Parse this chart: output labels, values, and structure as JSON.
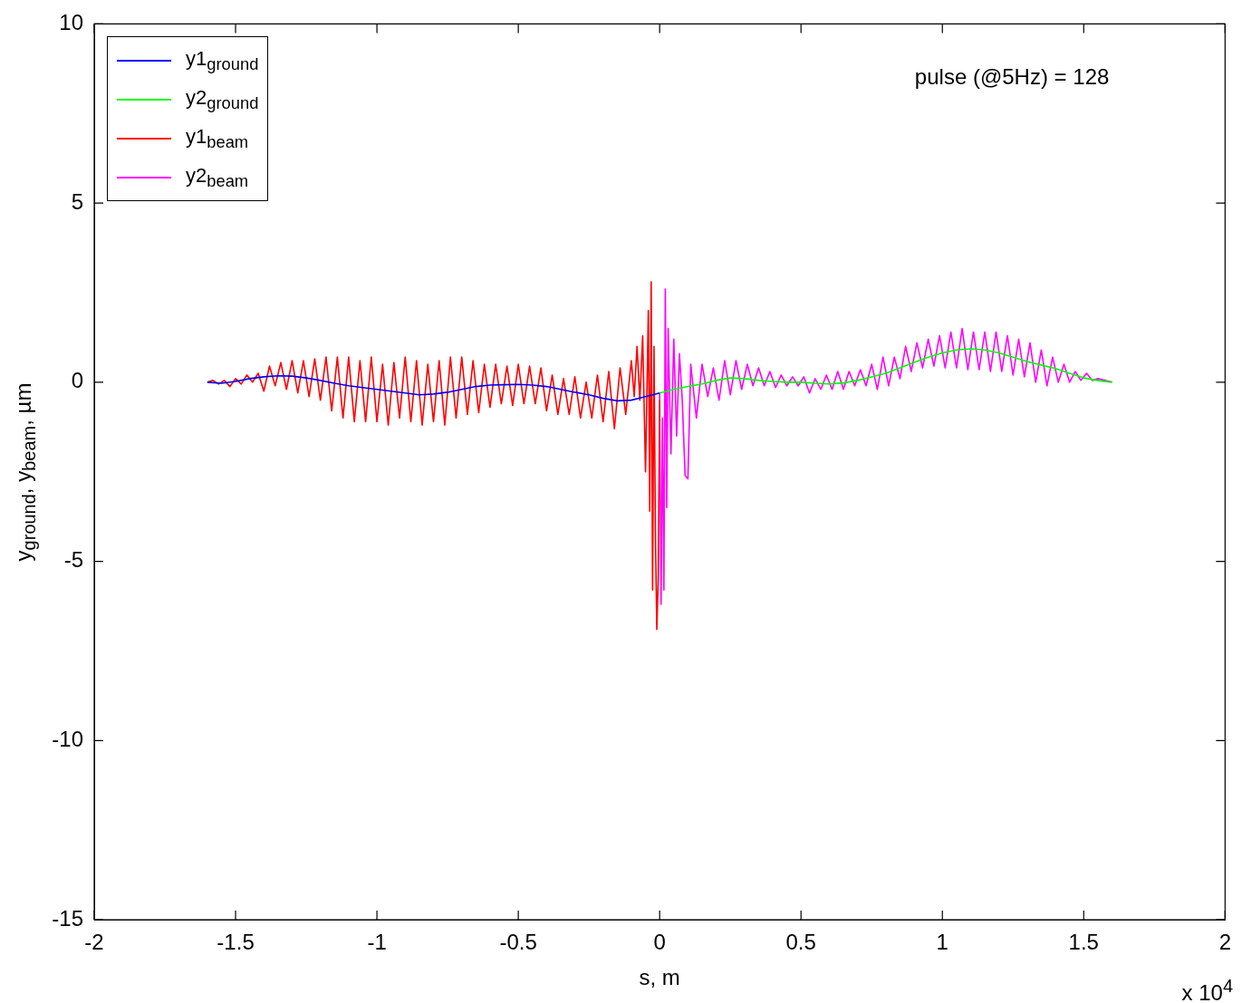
{
  "chart_data": {
    "type": "line",
    "xlabel": "s, m",
    "ylabel": "y$_{ground}$, y$_{beam}$, µm",
    "xlim": [
      -2,
      2
    ],
    "xticks": [
      -2,
      -1.5,
      -1,
      -0.5,
      0,
      0.5,
      1,
      1.5,
      2
    ],
    "ylim": [
      -15,
      10
    ],
    "yticks": [
      -15,
      -10,
      -5,
      0,
      5,
      10
    ],
    "grid": false,
    "legend": "top left",
    "marker": "none",
    "line_style": "solid",
    "annotations": [
      "pulse (@5Hz) = 128",
      "x 10$^{4}$"
    ],
    "series": [
      {
        "name": "y1$_{ground}$",
        "color": "#0000ff",
        "x": [
          -1.6,
          -1.55,
          -1.5,
          -1.45,
          -1.4,
          -1.35,
          -1.3,
          -1.25,
          -1.2,
          -1.15,
          -1.1,
          -1.05,
          -1.0,
          -0.95,
          -0.9,
          -0.85,
          -0.8,
          -0.75,
          -0.7,
          -0.65,
          -0.6,
          -0.55,
          -0.5,
          -0.45,
          -0.4,
          -0.35,
          -0.3,
          -0.25,
          -0.2,
          -0.15,
          -0.1,
          -0.05,
          0
        ],
        "values": [
          0,
          -0.03,
          0.02,
          0.1,
          0.15,
          0.18,
          0.17,
          0.12,
          0.05,
          -0.03,
          -0.1,
          -0.15,
          -0.2,
          -0.25,
          -0.3,
          -0.35,
          -0.33,
          -0.28,
          -0.2,
          -0.12,
          -0.08,
          -0.07,
          -0.06,
          -0.08,
          -0.12,
          -0.2,
          -0.28,
          -0.35,
          -0.45,
          -0.52,
          -0.5,
          -0.4,
          -0.3
        ]
      },
      {
        "name": "y2$_{ground}$",
        "color": "#00ff00",
        "x": [
          0,
          0.05,
          0.1,
          0.15,
          0.2,
          0.25,
          0.3,
          0.35,
          0.4,
          0.45,
          0.5,
          0.55,
          0.6,
          0.65,
          0.7,
          0.75,
          0.8,
          0.85,
          0.9,
          0.95,
          1.0,
          1.05,
          1.1,
          1.15,
          1.2,
          1.25,
          1.3,
          1.35,
          1.4,
          1.45,
          1.5,
          1.55,
          1.6
        ],
        "values": [
          -0.3,
          -0.2,
          -0.12,
          -0.05,
          0.05,
          0.12,
          0.1,
          0.05,
          0.02,
          0,
          0,
          -0.03,
          -0.05,
          -0.02,
          0.05,
          0.15,
          0.25,
          0.4,
          0.55,
          0.7,
          0.82,
          0.9,
          0.93,
          0.9,
          0.82,
          0.7,
          0.58,
          0.48,
          0.38,
          0.25,
          0.12,
          0.05,
          0
        ]
      },
      {
        "name": "y1$_{beam}$",
        "color": "#ff0000",
        "x": [
          -1.6,
          -1.58,
          -1.56,
          -1.54,
          -1.52,
          -1.5,
          -1.48,
          -1.46,
          -1.44,
          -1.42,
          -1.4,
          -1.38,
          -1.36,
          -1.34,
          -1.32,
          -1.3,
          -1.28,
          -1.26,
          -1.24,
          -1.22,
          -1.2,
          -1.18,
          -1.16,
          -1.14,
          -1.12,
          -1.1,
          -1.08,
          -1.06,
          -1.04,
          -1.02,
          -1.0,
          -0.98,
          -0.96,
          -0.94,
          -0.92,
          -0.9,
          -0.88,
          -0.86,
          -0.84,
          -0.82,
          -0.8,
          -0.78,
          -0.76,
          -0.74,
          -0.72,
          -0.7,
          -0.68,
          -0.66,
          -0.64,
          -0.62,
          -0.6,
          -0.58,
          -0.56,
          -0.54,
          -0.52,
          -0.5,
          -0.48,
          -0.46,
          -0.44,
          -0.42,
          -0.4,
          -0.38,
          -0.36,
          -0.34,
          -0.32,
          -0.3,
          -0.28,
          -0.26,
          -0.24,
          -0.22,
          -0.2,
          -0.18,
          -0.16,
          -0.14,
          -0.12,
          -0.1,
          -0.09,
          -0.08,
          -0.07,
          -0.06,
          -0.05,
          -0.04,
          -0.035,
          -0.03,
          -0.025,
          -0.02,
          -0.015,
          -0.01,
          -0.005,
          0
        ],
        "values": [
          0,
          0.05,
          -0.05,
          0.05,
          -0.12,
          0.1,
          -0.05,
          0.2,
          0,
          0.25,
          -0.25,
          0.45,
          -0.1,
          0.55,
          -0.2,
          0.6,
          -0.3,
          0.6,
          -0.4,
          0.65,
          -0.5,
          0.7,
          -0.8,
          0.7,
          -1.0,
          0.7,
          -1.1,
          0.6,
          -1.1,
          0.7,
          -1.1,
          0.5,
          -1.2,
          0.55,
          -1.0,
          0.7,
          -1.1,
          0.6,
          -1.2,
          0.5,
          -1.1,
          0.6,
          -1.2,
          0.7,
          -1.0,
          0.7,
          -0.9,
          0.6,
          -0.85,
          0.5,
          -0.7,
          0.5,
          -0.6,
          0.45,
          -0.65,
          0.5,
          -0.6,
          0.45,
          -0.6,
          0.4,
          -0.8,
          0.2,
          -0.9,
          0.1,
          -0.9,
          0.15,
          -1.0,
          0,
          -1.0,
          0.2,
          -1.1,
          0.3,
          -1.3,
          0.4,
          -0.9,
          0.6,
          -0.4,
          1.0,
          -0.5,
          1.3,
          -2.5,
          2.0,
          -3.6,
          2.8,
          -5.8,
          1.0,
          -4.2,
          -6.9,
          -5.5,
          -0.5
        ]
      },
      {
        "name": "y2$_{beam}$",
        "color": "#ff00ff",
        "x": [
          0,
          0.005,
          0.01,
          0.015,
          0.02,
          0.025,
          0.03,
          0.04,
          0.05,
          0.06,
          0.07,
          0.08,
          0.09,
          0.1,
          0.11,
          0.13,
          0.15,
          0.17,
          0.19,
          0.21,
          0.23,
          0.25,
          0.27,
          0.29,
          0.31,
          0.33,
          0.35,
          0.37,
          0.39,
          0.41,
          0.43,
          0.45,
          0.47,
          0.49,
          0.51,
          0.53,
          0.55,
          0.57,
          0.59,
          0.61,
          0.63,
          0.65,
          0.67,
          0.69,
          0.71,
          0.73,
          0.75,
          0.77,
          0.79,
          0.81,
          0.83,
          0.85,
          0.87,
          0.89,
          0.91,
          0.93,
          0.95,
          0.97,
          0.99,
          1.01,
          1.03,
          1.05,
          1.07,
          1.09,
          1.11,
          1.13,
          1.15,
          1.17,
          1.19,
          1.21,
          1.23,
          1.25,
          1.27,
          1.29,
          1.31,
          1.33,
          1.35,
          1.37,
          1.39,
          1.41,
          1.43,
          1.45,
          1.47,
          1.49,
          1.51,
          1.53,
          1.55,
          1.6
        ],
        "values": [
          -0.3,
          -6.2,
          -1.0,
          -5.8,
          2.6,
          -3.5,
          1.5,
          -2.0,
          1.2,
          -1.5,
          0.8,
          -0.5,
          -2.6,
          -2.7,
          0.5,
          -1.0,
          0.5,
          -0.4,
          0.4,
          -0.5,
          0.6,
          -0.35,
          0.6,
          -0.2,
          0.5,
          -0.1,
          0.4,
          -0.1,
          0.3,
          -0.15,
          0.2,
          -0.1,
          0.15,
          -0.1,
          0.15,
          -0.3,
          0.1,
          -0.2,
          0.2,
          -0.2,
          0.3,
          -0.2,
          0.3,
          -0.1,
          0.35,
          -0.1,
          0.5,
          -0.2,
          0.7,
          -0.1,
          0.7,
          0.1,
          1.0,
          0.3,
          1.1,
          0.4,
          1.2,
          0.45,
          1.3,
          0.4,
          1.4,
          0.4,
          1.5,
          0.35,
          1.4,
          0.35,
          1.4,
          0.3,
          1.4,
          0.3,
          1.3,
          0.2,
          1.2,
          0.15,
          1.1,
          0,
          0.9,
          -0.1,
          0.7,
          0,
          0.5,
          0,
          0.3,
          0.05,
          0.25,
          0.05,
          0.1,
          0
        ]
      }
    ]
  }
}
